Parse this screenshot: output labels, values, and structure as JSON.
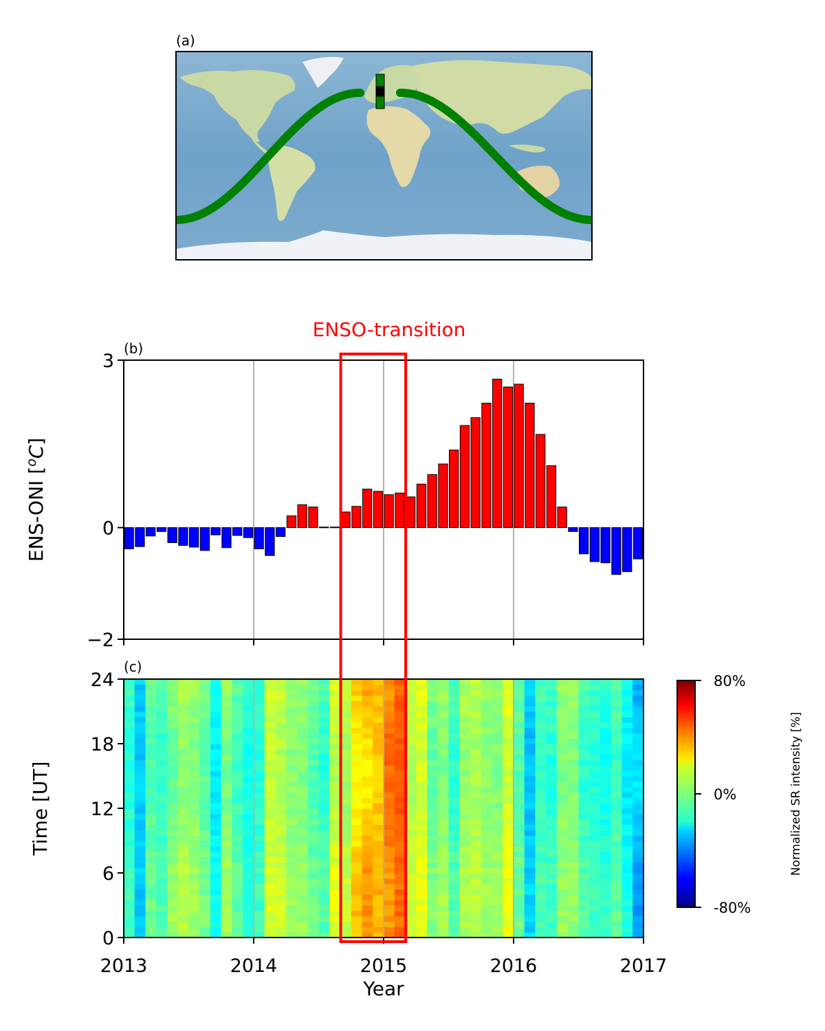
{
  "chart_data": [
    {
      "panel": "(a)",
      "type": "map",
      "track_color": "#008000",
      "marker_colors": [
        "#008000",
        "#000000",
        "#008000"
      ]
    },
    {
      "panel": "(b)",
      "type": "bar",
      "title": "ENSO-transition",
      "ylabel": "ENS-ONI [°C]",
      "ylabel_parts": {
        "prefix": "ENS-ONI [",
        "degree": "o",
        "unit": "C",
        "suffix": "]"
      },
      "xlim": [
        2013,
        2017
      ],
      "ylim": [
        -2,
        3
      ],
      "yticks": [
        3,
        0,
        -2
      ],
      "ytick_labels": [
        "3",
        "0",
        "−2"
      ],
      "xticks": [
        2013,
        2014,
        2015,
        2016,
        2017
      ],
      "grid": "x",
      "positive_color": "#ff0000",
      "negative_color": "#0000ff",
      "categories": [
        "2013-01",
        "2013-02",
        "2013-03",
        "2013-04",
        "2013-05",
        "2013-06",
        "2013-07",
        "2013-08",
        "2013-09",
        "2013-10",
        "2013-11",
        "2013-12",
        "2014-01",
        "2014-02",
        "2014-03",
        "2014-04",
        "2014-05",
        "2014-06",
        "2014-07",
        "2014-08",
        "2014-09",
        "2014-10",
        "2014-11",
        "2014-12",
        "2015-01",
        "2015-02",
        "2015-03",
        "2015-04",
        "2015-05",
        "2015-06",
        "2015-07",
        "2015-08",
        "2015-09",
        "2015-10",
        "2015-11",
        "2015-12",
        "2016-01",
        "2016-02",
        "2016-03",
        "2016-04",
        "2016-05",
        "2016-06",
        "2016-07",
        "2016-08",
        "2016-09",
        "2016-10",
        "2016-11",
        "2016-12"
      ],
      "values": [
        -0.38,
        -0.34,
        -0.15,
        -0.07,
        -0.27,
        -0.32,
        -0.35,
        -0.41,
        -0.13,
        -0.36,
        -0.14,
        -0.18,
        -0.38,
        -0.5,
        -0.16,
        0.21,
        0.41,
        0.37,
        0.01,
        0.01,
        0.28,
        0.38,
        0.69,
        0.65,
        0.59,
        0.62,
        0.55,
        0.78,
        0.95,
        1.14,
        1.39,
        1.83,
        1.97,
        2.23,
        2.66,
        2.52,
        2.57,
        2.23,
        1.67,
        1.11,
        0.37,
        -0.07,
        -0.47,
        -0.61,
        -0.63,
        -0.84,
        -0.79,
        -0.56
      ],
      "highlight": {
        "label": "ENSO-transition",
        "x_range": [
          2014.67,
          2015.17
        ],
        "color": "#ff0000"
      }
    },
    {
      "panel": "(c)",
      "type": "heatmap",
      "xlabel": "Year",
      "ylabel": "Time [UT]",
      "xlim": [
        2013,
        2017
      ],
      "ylim": [
        0,
        24
      ],
      "xticks": [
        2013,
        2014,
        2015,
        2016,
        2017
      ],
      "xtick_labels": [
        "2013",
        "2014",
        "2015",
        "2016",
        "2017"
      ],
      "yticks": [
        0,
        6,
        12,
        18,
        24
      ],
      "ytick_labels": [
        "0",
        "6",
        "12",
        "18",
        "24"
      ],
      "colormap": "jet",
      "clim": [
        -80,
        80
      ],
      "colorbar": {
        "label": "Normalized SR intensity [%]",
        "ticks": [
          80,
          0,
          -80
        ],
        "tick_labels": [
          "80%",
          "0%",
          "-80%"
        ]
      },
      "monthly_mean_percent": [
        -12,
        -28,
        -5,
        -10,
        0,
        5,
        3,
        -3,
        -20,
        3,
        -8,
        -15,
        -12,
        12,
        10,
        3,
        2,
        -5,
        -10,
        12,
        8,
        25,
        30,
        30,
        40,
        45,
        10,
        15,
        -2,
        3,
        -10,
        5,
        8,
        3,
        3,
        15,
        -5,
        -28,
        -10,
        -12,
        2,
        2,
        -10,
        -12,
        -15,
        -8,
        -20,
        -30
      ],
      "night_day_offset_percent": [
        3,
        0,
        2,
        3,
        5,
        4,
        2,
        2,
        2,
        4,
        3,
        2,
        2,
        2,
        3,
        2,
        2,
        2,
        4,
        5,
        4,
        6,
        8,
        2,
        -4,
        -2,
        3,
        2,
        3,
        3,
        3,
        3,
        2,
        2,
        3,
        3,
        2,
        2,
        2,
        2,
        2,
        2,
        3,
        2,
        3,
        3,
        4,
        -6
      ]
    }
  ]
}
